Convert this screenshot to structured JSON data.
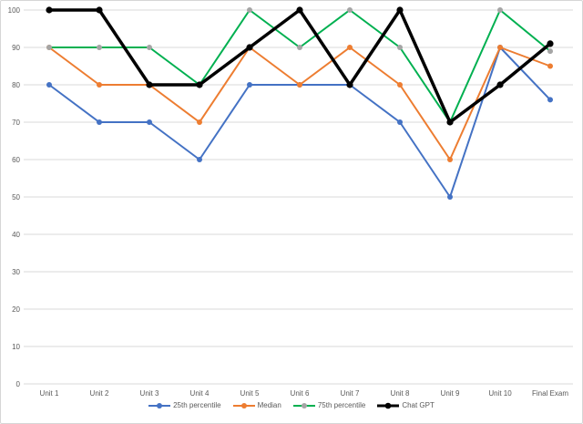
{
  "chart_data": {
    "type": "line",
    "title": "",
    "categories": [
      "Unit 1",
      "Unit 2",
      "Unit 3",
      "Unit 4",
      "Unit 5",
      "Unit 6",
      "Unit 7",
      "Unit 8",
      "Unit 9",
      "Unit 10",
      "Final Exam"
    ],
    "series": [
      {
        "name": "25th percentile",
        "color": "#4472C4",
        "marker_color": "#4472C4",
        "line_width": 2,
        "values": [
          80,
          70,
          70,
          60,
          80,
          80,
          80,
          70,
          50,
          90,
          76
        ]
      },
      {
        "name": "Median",
        "color": "#ED7D31",
        "marker_color": "#ED7D31",
        "line_width": 2,
        "values": [
          90,
          80,
          80,
          70,
          90,
          80,
          90,
          80,
          60,
          90,
          85
        ]
      },
      {
        "name": "75th percentile",
        "color": "#00B050",
        "marker_color": "#A5A5A5",
        "line_width": 2,
        "values": [
          90,
          90,
          90,
          80,
          100,
          90,
          100,
          90,
          70,
          100,
          89
        ]
      },
      {
        "name": "Chat GPT",
        "color": "#000000",
        "marker_color": "#000000",
        "line_width": 3.5,
        "values": [
          100,
          100,
          80,
          80,
          90,
          100,
          80,
          100,
          70,
          80,
          91
        ]
      }
    ],
    "xlabel": "",
    "ylabel": "",
    "ylim": [
      0,
      100
    ],
    "y_ticks": [
      "0",
      "10",
      "20",
      "30",
      "40",
      "50",
      "60",
      "70",
      "80",
      "90",
      "100"
    ],
    "grid": true,
    "legend_position": "bottom"
  },
  "colors": {
    "gridline": "#D9D9D9",
    "axis_text": "#595959",
    "background": "#FFFFFF",
    "border": "#D6D6D6"
  }
}
